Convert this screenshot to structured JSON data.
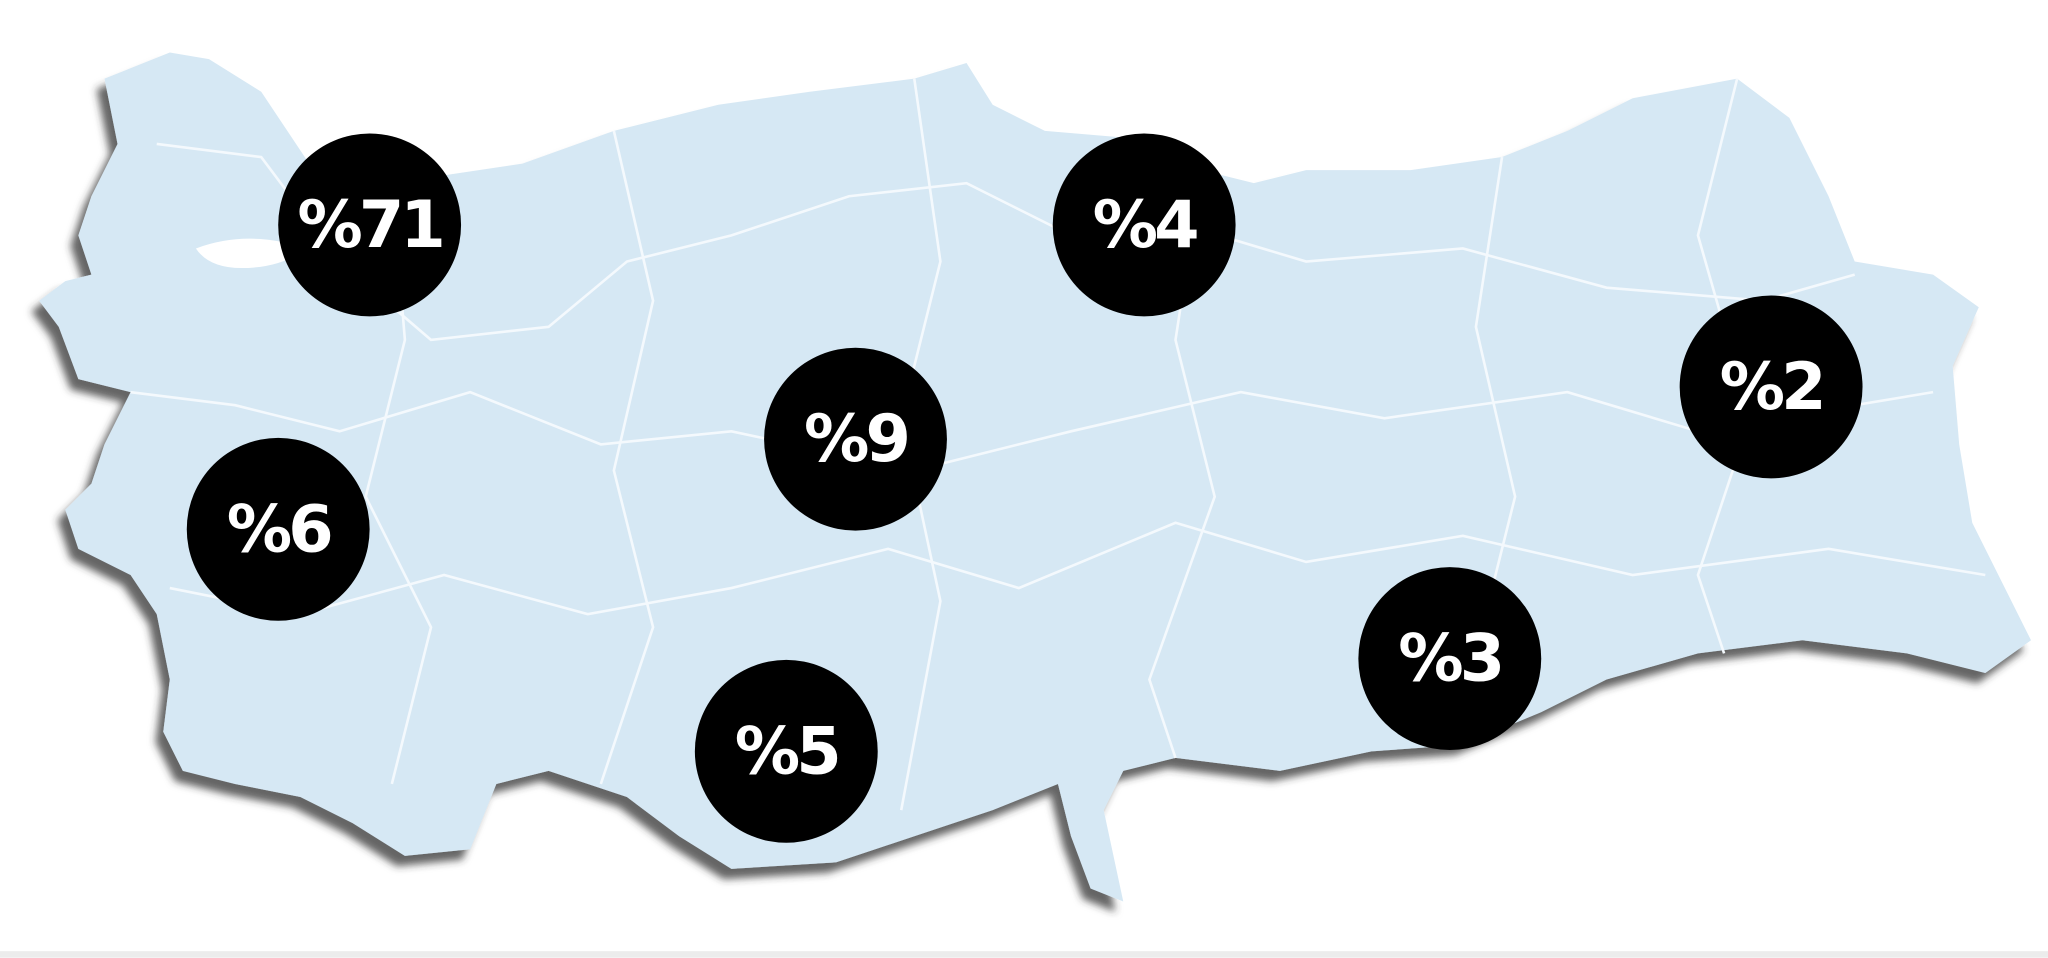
{
  "regions": [
    {
      "label": "%71"
    },
    {
      "label": "%4"
    },
    {
      "label": "%9"
    },
    {
      "label": "%2"
    },
    {
      "label": "%6"
    },
    {
      "label": "%3"
    },
    {
      "label": "%5"
    }
  ]
}
